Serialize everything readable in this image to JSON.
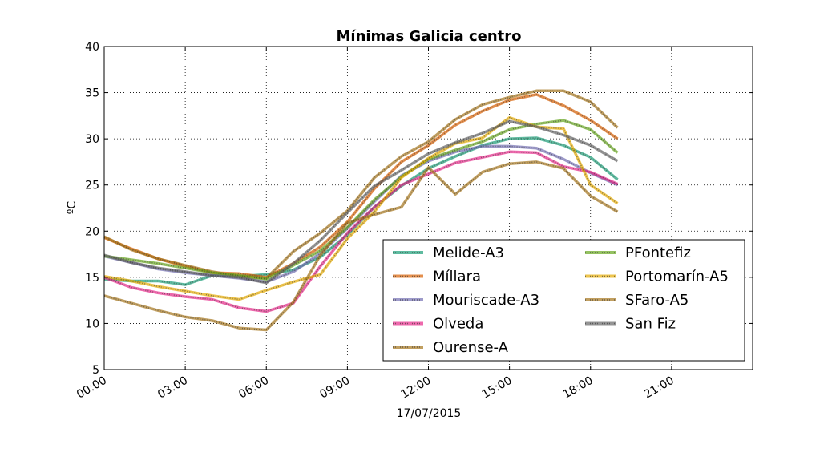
{
  "chart_data": {
    "type": "line",
    "title": "Mínimas Galicia centro",
    "xlabel": "17/07/2015",
    "ylabel": "ºC",
    "xlim": [
      0,
      24
    ],
    "ylim": [
      5,
      40
    ],
    "grid": true,
    "legend_position": "lower-right",
    "x_ticks": [
      0,
      3,
      6,
      9,
      12,
      15,
      18,
      21
    ],
    "x_tick_labels": [
      "00:00",
      "03:00",
      "06:00",
      "09:00",
      "12:00",
      "15:00",
      "18:00",
      "21:00"
    ],
    "y_ticks": [
      5,
      10,
      15,
      20,
      25,
      30,
      35,
      40
    ],
    "y_tick_labels": [
      "5",
      "10",
      "15",
      "20",
      "25",
      "30",
      "35",
      "40"
    ],
    "x_unit": "hour",
    "series": [
      {
        "name": "Melide-A3",
        "color": "#1b9e77",
        "x": [
          0,
          1,
          2,
          3,
          4,
          5,
          6,
          7,
          8,
          9,
          10,
          11,
          12,
          13,
          14,
          15,
          16,
          17,
          18,
          19
        ],
        "y": [
          14.8,
          14.6,
          14.6,
          14.2,
          15.2,
          15.1,
          15.3,
          15.8,
          17.2,
          19.6,
          22.6,
          24.9,
          26.8,
          28.1,
          29.3,
          30.0,
          30.1,
          29.3,
          28.0,
          25.6
        ]
      },
      {
        "name": "Míllara",
        "color": "#d95f02",
        "x": [
          0,
          1,
          2,
          3,
          4,
          5,
          6,
          7,
          8,
          9,
          10,
          11,
          12,
          13,
          14,
          15,
          16,
          17,
          18,
          19
        ],
        "y": [
          19.3,
          18.1,
          17.0,
          16.2,
          15.5,
          15.4,
          15.0,
          16.5,
          18.3,
          21.0,
          24.6,
          27.5,
          29.3,
          31.5,
          33.0,
          34.2,
          34.8,
          33.6,
          32.0,
          30.0
        ]
      },
      {
        "name": "Mouriscade-A3",
        "color": "#7570b3",
        "x": [
          0,
          1,
          2,
          3,
          4,
          5,
          6,
          7,
          8,
          9,
          10,
          11,
          12,
          13,
          14,
          15,
          16,
          17,
          18,
          19
        ],
        "y": [
          17.3,
          16.6,
          15.9,
          15.5,
          15.2,
          14.9,
          14.5,
          15.6,
          17.6,
          20.3,
          23.2,
          26.0,
          27.6,
          28.6,
          29.2,
          29.2,
          29.0,
          27.8,
          26.3,
          25.0
        ]
      },
      {
        "name": "Olveda",
        "color": "#e7298a",
        "x": [
          0,
          1,
          2,
          3,
          4,
          5,
          6,
          7,
          8,
          9,
          10,
          11,
          12,
          13,
          14,
          15,
          16,
          17,
          18,
          19
        ],
        "y": [
          15.0,
          13.9,
          13.3,
          12.9,
          12.6,
          11.7,
          11.3,
          12.2,
          16.2,
          19.8,
          22.6,
          25.0,
          26.2,
          27.4,
          28.0,
          28.6,
          28.5,
          27.0,
          26.4,
          25.1
        ]
      },
      {
        "name": "Ourense-A",
        "color": "#a6761d",
        "x": [
          0,
          1,
          2,
          3,
          4,
          5,
          6,
          7,
          8,
          9,
          10,
          11,
          12,
          13,
          14,
          15,
          16,
          17,
          18,
          19
        ],
        "y": [
          19.4,
          18.0,
          17.0,
          16.3,
          15.6,
          15.1,
          14.9,
          17.8,
          19.8,
          22.2,
          25.8,
          28.1,
          29.7,
          32.1,
          33.7,
          34.5,
          35.2,
          35.2,
          34.0,
          31.2
        ]
      },
      {
        "name": "PFontefiz",
        "color": "#66a61e",
        "x": [
          0,
          1,
          2,
          3,
          4,
          5,
          6,
          7,
          8,
          9,
          10,
          11,
          12,
          13,
          14,
          15,
          16,
          17,
          18,
          19
        ],
        "y": [
          17.3,
          16.9,
          16.5,
          16.0,
          15.5,
          15.2,
          14.8,
          16.3,
          17.9,
          20.4,
          23.4,
          25.9,
          27.8,
          28.8,
          29.7,
          31.0,
          31.6,
          32.0,
          31.0,
          28.5
        ]
      },
      {
        "name": "Portomarín-A5",
        "color": "#e6ab02",
        "x": [
          0,
          1,
          2,
          3,
          4,
          5,
          6,
          7,
          8,
          9,
          10,
          11,
          12,
          13,
          14,
          15,
          16,
          17,
          18,
          19
        ],
        "y": [
          15.1,
          14.6,
          14.0,
          13.5,
          13.0,
          12.6,
          13.6,
          14.5,
          15.3,
          19.2,
          22.1,
          25.8,
          27.9,
          29.5,
          30.1,
          32.3,
          31.3,
          31.1,
          25.0,
          23.0
        ]
      },
      {
        "name": "SFaro-A5",
        "color": "#a6761d",
        "x": [
          0,
          1,
          2,
          3,
          4,
          5,
          6,
          7,
          8,
          9,
          10,
          11,
          12,
          13,
          14,
          15,
          16,
          17,
          18,
          19
        ],
        "y": [
          13.0,
          12.2,
          11.4,
          10.7,
          10.3,
          9.5,
          9.3,
          12.3,
          17.4,
          20.9,
          21.8,
          22.6,
          26.9,
          24.0,
          26.4,
          27.3,
          27.5,
          26.8,
          23.8,
          22.1
        ]
      },
      {
        "name": "San Fiz",
        "color": "#666666",
        "x": [
          0,
          1,
          2,
          3,
          4,
          5,
          6,
          7,
          8,
          9,
          10,
          11,
          12,
          13,
          14,
          15,
          16,
          17,
          18,
          19
        ],
        "y": [
          17.4,
          16.6,
          16.0,
          15.6,
          15.2,
          15.0,
          14.4,
          16.5,
          19.0,
          22.0,
          24.9,
          26.6,
          28.4,
          29.6,
          30.6,
          31.9,
          31.3,
          30.4,
          29.3,
          27.6
        ]
      }
    ]
  }
}
